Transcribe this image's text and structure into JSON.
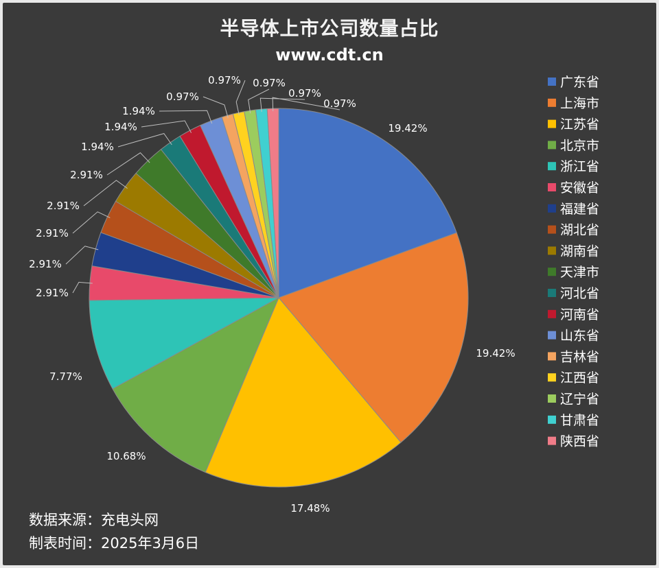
{
  "title": "半导体上市公司数量占比",
  "subtitle": "www.cdt.cn",
  "footer": {
    "source": "数据来源：充电头网",
    "date": "制表时间：2025年3月6日"
  },
  "chart_data": {
    "type": "pie",
    "title": "半导体上市公司数量占比",
    "unit": "%",
    "start_angle_deg": 0,
    "direction": "clockwise",
    "legend_position": "right",
    "slices": [
      {
        "label": "广东省",
        "value": 19.42,
        "value_label": "19.42%",
        "color": "#4472c4"
      },
      {
        "label": "上海市",
        "value": 19.42,
        "value_label": "19.42%",
        "color": "#ed7d31"
      },
      {
        "label": "江苏省",
        "value": 17.48,
        "value_label": "17.48%",
        "color": "#ffc000"
      },
      {
        "label": "北京市",
        "value": 10.68,
        "value_label": "10.68%",
        "color": "#70ad47"
      },
      {
        "label": "浙江省",
        "value": 7.77,
        "value_label": "7.77%",
        "color": "#2ec4b6"
      },
      {
        "label": "安徽省",
        "value": 2.91,
        "value_label": "2.91%",
        "color": "#e84a6a"
      },
      {
        "label": "福建省",
        "value": 2.91,
        "value_label": "2.91%",
        "color": "#1f3f8c"
      },
      {
        "label": "湖北省",
        "value": 2.91,
        "value_label": "2.91%",
        "color": "#b5501b"
      },
      {
        "label": "湖南省",
        "value": 2.91,
        "value_label": "2.91%",
        "color": "#9c7a00"
      },
      {
        "label": "天津市",
        "value": 2.91,
        "value_label": "2.91%",
        "color": "#3f7a2a"
      },
      {
        "label": "河北省",
        "value": 1.94,
        "value_label": "1.94%",
        "color": "#1a7a78"
      },
      {
        "label": "河南省",
        "value": 1.94,
        "value_label": "1.94%",
        "color": "#c0192e"
      },
      {
        "label": "山东省",
        "value": 1.94,
        "value_label": "1.94%",
        "color": "#6d8fd6"
      },
      {
        "label": "吉林省",
        "value": 0.97,
        "value_label": "0.97%",
        "color": "#f4a460"
      },
      {
        "label": "江西省",
        "value": 0.97,
        "value_label": "0.97%",
        "color": "#ffd21f"
      },
      {
        "label": "辽宁省",
        "value": 0.97,
        "value_label": "0.97%",
        "color": "#9ccc5e"
      },
      {
        "label": "甘肃省",
        "value": 0.97,
        "value_label": "0.97%",
        "color": "#40d0d0"
      },
      {
        "label": "陕西省",
        "value": 0.97,
        "value_label": "0.97%",
        "color": "#f07c88"
      }
    ]
  }
}
